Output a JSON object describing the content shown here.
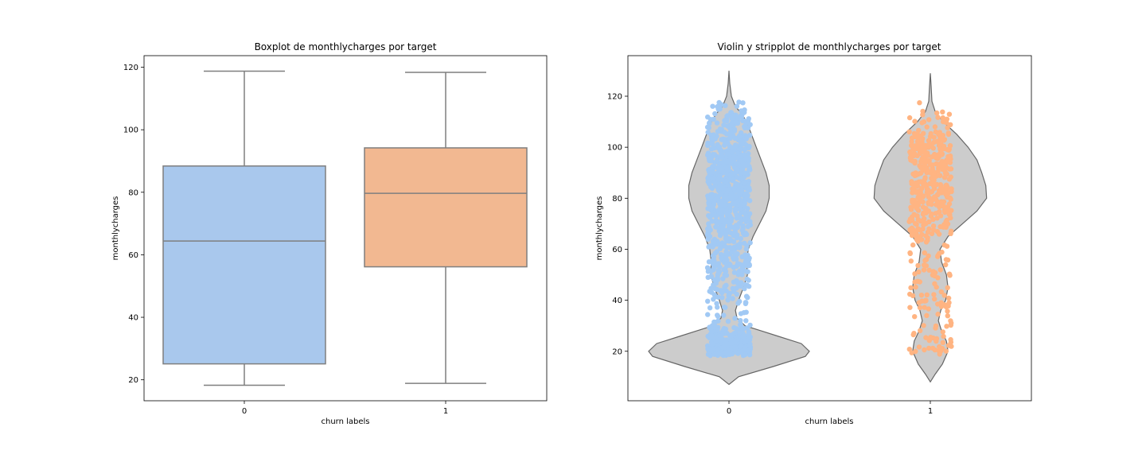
{
  "chart_data": [
    {
      "type": "box",
      "title": "Boxplot de monthlycharges por target",
      "xlabel": "churn labels",
      "ylabel": "monthlycharges",
      "categories": [
        "0",
        "1"
      ],
      "yticks": [
        "20",
        "40",
        "60",
        "80",
        "100",
        "120"
      ],
      "ylim": [
        13.3,
        123.7
      ],
      "grid": false,
      "colors": [
        "#a9c8ed",
        "#f2b891"
      ],
      "boxes": [
        {
          "category": "0",
          "whisker_low": 18.25,
          "q1": 25.1,
          "median": 64.4,
          "q3": 88.4,
          "whisker_high": 118.75
        },
        {
          "category": "1",
          "whisker_low": 18.85,
          "q1": 56.15,
          "median": 79.65,
          "q3": 94.2,
          "whisker_high": 118.35
        }
      ]
    },
    {
      "type": "violin",
      "title": "Violin y stripplot de monthlycharges por target",
      "xlabel": "churn labels",
      "ylabel": "monthlycharges",
      "categories": [
        "0",
        "1"
      ],
      "yticks": [
        "20",
        "40",
        "60",
        "80",
        "100",
        "120"
      ],
      "ylim": [
        0.6,
        135.9
      ],
      "grid": false,
      "violin_color": "#cccccc",
      "point_colors": [
        "#a1c9f4",
        "#ffb482"
      ],
      "violins": [
        {
          "category": "0",
          "y_min": 7,
          "y_max": 130,
          "density": [
            [
              7,
              0.0
            ],
            [
              10,
              0.12
            ],
            [
              14,
              0.55
            ],
            [
              18,
              0.95
            ],
            [
              20,
              1.0
            ],
            [
              23,
              0.9
            ],
            [
              26,
              0.6
            ],
            [
              28,
              0.4
            ],
            [
              30,
              0.2
            ],
            [
              33,
              0.1
            ],
            [
              36,
              0.08
            ],
            [
              40,
              0.12
            ],
            [
              45,
              0.18
            ],
            [
              50,
              0.23
            ],
            [
              55,
              0.22
            ],
            [
              60,
              0.24
            ],
            [
              65,
              0.3
            ],
            [
              70,
              0.38
            ],
            [
              75,
              0.46
            ],
            [
              80,
              0.5
            ],
            [
              85,
              0.5
            ],
            [
              90,
              0.46
            ],
            [
              95,
              0.4
            ],
            [
              100,
              0.34
            ],
            [
              105,
              0.28
            ],
            [
              110,
              0.22
            ],
            [
              113,
              0.16
            ],
            [
              116,
              0.08
            ],
            [
              120,
              0.03
            ],
            [
              125,
              0.01
            ],
            [
              130,
              0.0
            ]
          ]
        },
        {
          "category": "1",
          "y_min": 8,
          "y_max": 129,
          "density": [
            [
              8,
              0.0
            ],
            [
              11,
              0.06
            ],
            [
              15,
              0.15
            ],
            [
              20,
              0.22
            ],
            [
              24,
              0.2
            ],
            [
              28,
              0.14
            ],
            [
              32,
              0.1
            ],
            [
              36,
              0.13
            ],
            [
              40,
              0.19
            ],
            [
              45,
              0.22
            ],
            [
              50,
              0.2
            ],
            [
              55,
              0.14
            ],
            [
              60,
              0.12
            ],
            [
              65,
              0.22
            ],
            [
              70,
              0.4
            ],
            [
              75,
              0.58
            ],
            [
              80,
              0.7
            ],
            [
              85,
              0.69
            ],
            [
              90,
              0.64
            ],
            [
              95,
              0.58
            ],
            [
              100,
              0.47
            ],
            [
              105,
              0.33
            ],
            [
              110,
              0.16
            ],
            [
              114,
              0.06
            ],
            [
              118,
              0.02
            ],
            [
              124,
              0.01
            ],
            [
              129,
              0.0
            ]
          ]
        }
      ],
      "strip_points": [
        {
          "category": "0",
          "count": 1100,
          "y_range": [
            18.25,
            118.75
          ]
        },
        {
          "category": "1",
          "count": 500,
          "y_range": [
            18.85,
            118.35
          ]
        }
      ]
    }
  ]
}
